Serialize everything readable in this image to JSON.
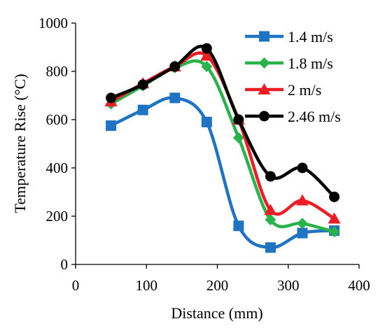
{
  "chart_data": {
    "type": "line",
    "title": "",
    "xlabel": "Distance (mm)",
    "ylabel": "Temperature Rise (°C)",
    "xlim": [
      0,
      400
    ],
    "ylim": [
      0,
      1000
    ],
    "xticks": [
      0,
      100,
      200,
      300,
      400
    ],
    "yticks": [
      0,
      200,
      400,
      600,
      800,
      1000
    ],
    "xtick_labels": [
      "0",
      "100",
      "200",
      "300",
      "400"
    ],
    "ytick_labels": [
      "0",
      "200",
      "400",
      "600",
      "800",
      "1000"
    ],
    "smooth": true,
    "grid": false,
    "legend_position": "top-right",
    "x": [
      50,
      95,
      140,
      185,
      230,
      275,
      320,
      365
    ],
    "series": [
      {
        "name": "1.4 m/s",
        "marker": "square",
        "color": "#1f73c4",
        "values": [
          575,
          640,
          690,
          590,
          160,
          70,
          130,
          140
        ]
      },
      {
        "name": "1.8 m/s",
        "marker": "diamond",
        "color": "#29b34a",
        "values": [
          665,
          740,
          815,
          820,
          525,
          185,
          170,
          135
        ]
      },
      {
        "name": "2 m/s",
        "marker": "triangle",
        "color": "#ee1c24",
        "values": [
          675,
          750,
          820,
          865,
          600,
          225,
          265,
          190
        ]
      },
      {
        "name": "2.46 m/s",
        "marker": "circle",
        "color": "#000000",
        "values": [
          690,
          745,
          820,
          895,
          600,
          365,
          400,
          280
        ]
      }
    ]
  }
}
